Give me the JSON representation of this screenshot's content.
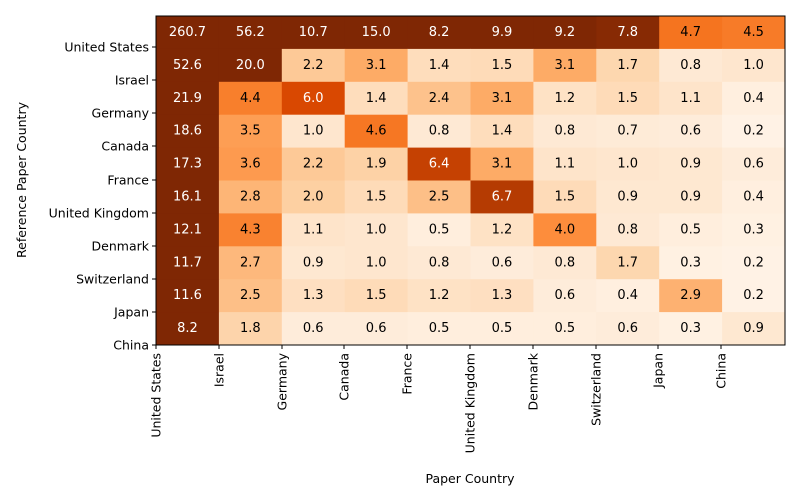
{
  "chart_data": {
    "type": "heatmap",
    "title": "",
    "xlabel": "Paper Country",
    "ylabel": "Reference Paper Country",
    "x_tick_labels": [
      "United States",
      "Israel",
      "Germany",
      "Canada",
      "France",
      "United Kingdom",
      "Denmark",
      "Switzerland",
      "Japan",
      "China"
    ],
    "y_tick_labels": [
      "United States",
      "Israel",
      "Germany",
      "Canada",
      "France",
      "United Kingdom",
      "Denmark",
      "Switzerland",
      "Japan",
      "China"
    ],
    "values": [
      [
        260.7,
        56.2,
        10.7,
        15.0,
        8.2,
        9.9,
        9.2,
        7.8,
        4.7,
        4.5
      ],
      [
        52.6,
        20.0,
        2.2,
        3.1,
        1.4,
        1.5,
        3.1,
        1.7,
        0.8,
        1.0
      ],
      [
        21.9,
        4.4,
        6.0,
        1.4,
        2.4,
        3.1,
        1.2,
        1.5,
        1.1,
        0.4
      ],
      [
        18.6,
        3.5,
        1.0,
        4.6,
        0.8,
        1.4,
        0.8,
        0.7,
        0.6,
        0.2
      ],
      [
        17.3,
        3.6,
        2.2,
        1.9,
        6.4,
        3.1,
        1.1,
        1.0,
        0.9,
        0.6
      ],
      [
        16.1,
        2.8,
        2.0,
        1.5,
        2.5,
        6.7,
        1.5,
        0.9,
        0.9,
        0.4
      ],
      [
        12.1,
        4.3,
        1.1,
        1.0,
        0.5,
        1.2,
        4.0,
        0.8,
        0.5,
        0.3
      ],
      [
        11.7,
        2.7,
        0.9,
        1.0,
        0.8,
        0.6,
        0.8,
        1.7,
        0.3,
        0.2
      ],
      [
        11.6,
        2.5,
        1.3,
        1.5,
        1.2,
        1.3,
        0.6,
        0.4,
        2.9,
        0.2
      ],
      [
        8.2,
        1.8,
        0.6,
        0.6,
        0.5,
        0.5,
        0.5,
        0.6,
        0.3,
        0.9
      ]
    ],
    "colormap": "Oranges",
    "grid": false,
    "legend": "none"
  }
}
